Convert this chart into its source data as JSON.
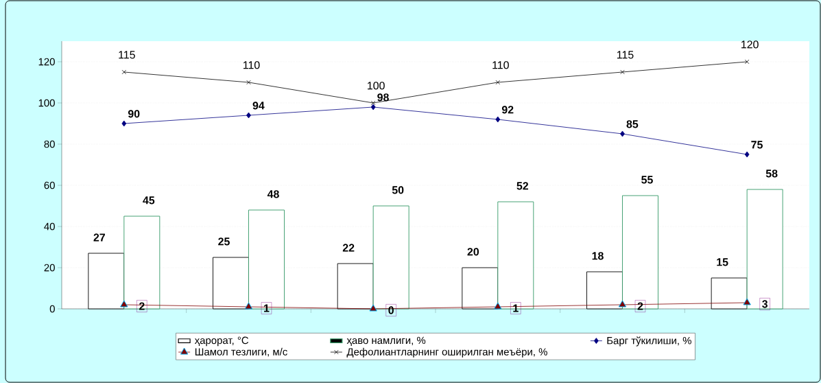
{
  "chart_data": {
    "type": "bar",
    "categories": [
      null,
      null,
      null,
      null,
      null,
      null
    ],
    "ylim": [
      0,
      130
    ],
    "yticks": [
      0,
      20,
      40,
      60,
      80,
      100,
      120
    ],
    "grid": "y",
    "legend": "bottom",
    "data_labels": true,
    "series": [
      {
        "name": "ҳарорат, °С",
        "color": "#000000",
        "values": [
          27,
          25,
          22,
          20,
          18,
          15
        ]
      },
      {
        "name": "ҳаво намлиги, %",
        "color": "#339966",
        "values": [
          45,
          48,
          50,
          52,
          55,
          58
        ]
      },
      {
        "name": "Барг тўкилиши, %",
        "type": "line",
        "color": "#000080",
        "marker": "diamond",
        "values": [
          90,
          94,
          98,
          92,
          85,
          75
        ]
      },
      {
        "name": "Шамол тезлиги, м/с",
        "type": "line",
        "color": "#800000",
        "marker": "triangle",
        "values": [
          2,
          1,
          0,
          1,
          2,
          3
        ]
      },
      {
        "name": "Дефолиантларнинг оширилган меъёри, %",
        "type": "line",
        "color": "#000000",
        "marker": "cross",
        "values": [
          115,
          110,
          100,
          110,
          115,
          120
        ]
      }
    ]
  }
}
